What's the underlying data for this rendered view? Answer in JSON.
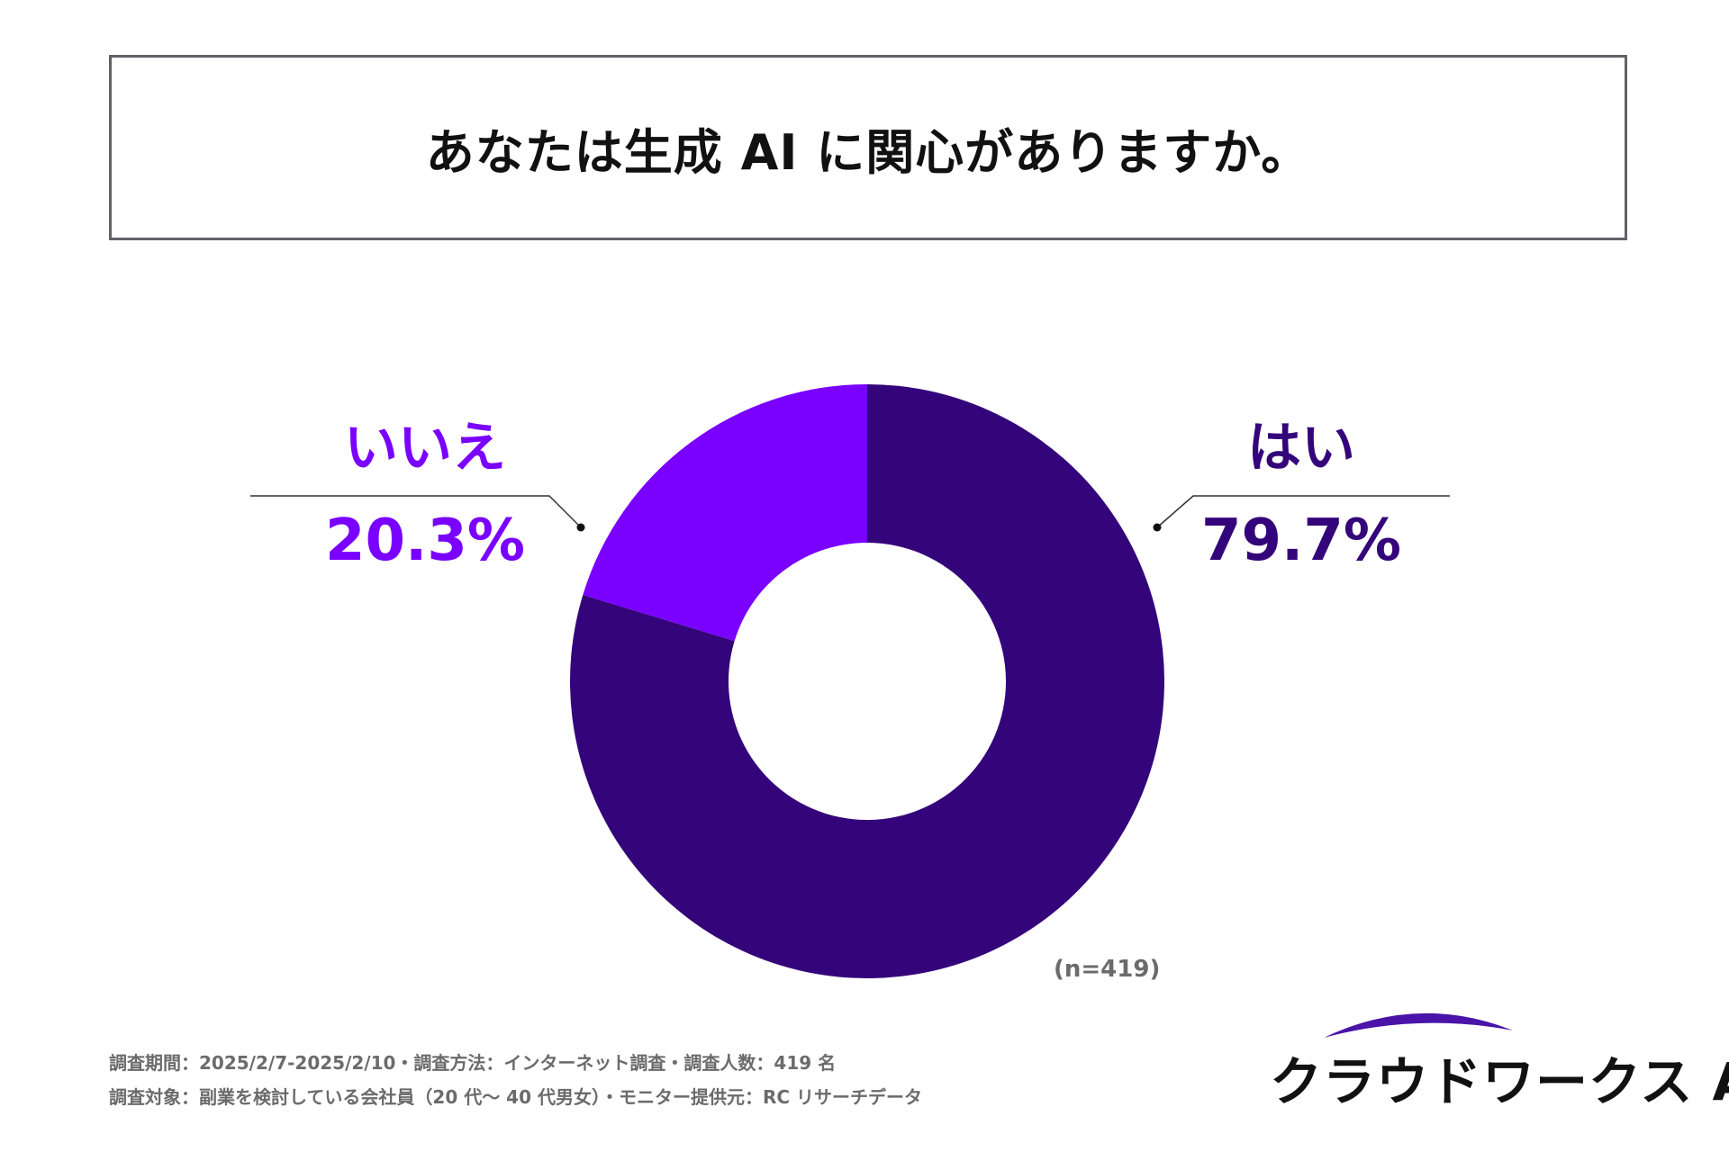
{
  "title": "あなたは生成 AI に関心がありますか。",
  "chart_data": {
    "type": "pie",
    "donut": true,
    "title": "あなたは生成 AI に関心がありますか。",
    "slices": [
      {
        "label": "はい",
        "value": 79.7,
        "value_label": "79.7%",
        "color": "#34057a"
      },
      {
        "label": "いいえ",
        "value": 20.3,
        "value_label": "20.3%",
        "color": "#7a00ff"
      }
    ],
    "start": "12 o'clock",
    "direction": "clockwise",
    "annotation": "(n=419)"
  },
  "footnotes": {
    "line1": "調査期間：2025/2/7-2025/2/10・調査方法：インターネット調査・調査人数：419 名",
    "line2": "調査対象：副業を検討している会社員（20 代～ 40 代男女）・モニター提供元：RC リサーチデータ"
  },
  "logo": {
    "text": "クラウドワークス AI",
    "color": "#4a14a8"
  }
}
